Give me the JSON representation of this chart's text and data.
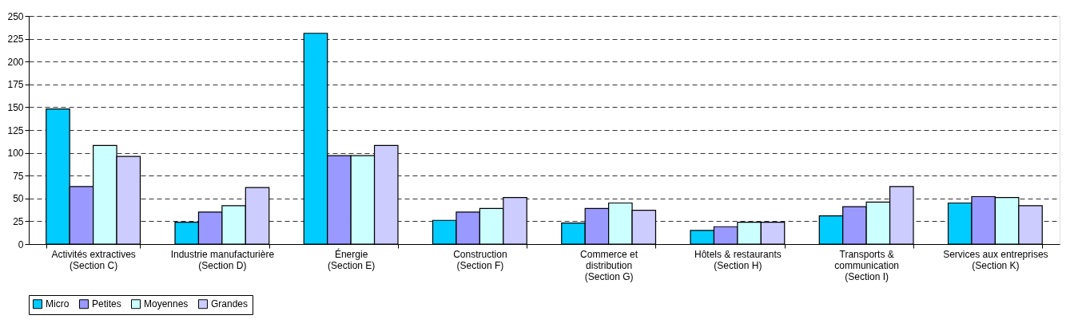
{
  "chart_data": {
    "type": "bar",
    "categories": [
      "Activités extractives\n(Section C)",
      "Industrie manufacturière\n(Section D)",
      "Énergie\n(Section E)",
      "Construction\n(Section F)",
      "Commerce et\ndistribution\n(Section G)",
      "Hôtels & restaurants\n(Section H)",
      "Transports &\ncommunication\n(Section I)",
      "Services aux entreprises\n(Section K)"
    ],
    "series": [
      {
        "name": "Micro",
        "color": "#00ccff",
        "values": [
          148,
          24,
          231,
          26,
          23,
          15,
          31,
          45
        ]
      },
      {
        "name": "Petites",
        "color": "#9999ff",
        "values": [
          63,
          35,
          97,
          35,
          39,
          19,
          41,
          52
        ]
      },
      {
        "name": "Moyennes",
        "color": "#ccffff",
        "values": [
          108,
          42,
          97,
          39,
          45,
          24,
          46,
          51
        ]
      },
      {
        "name": "Grandes",
        "color": "#ccccff",
        "values": [
          96,
          62,
          108,
          51,
          37,
          24,
          63,
          42
        ]
      }
    ],
    "ylim": [
      0,
      250
    ],
    "yticks": [
      0,
      25,
      50,
      75,
      100,
      125,
      150,
      175,
      200,
      225,
      250
    ],
    "grid": "y",
    "legend": "bottom"
  }
}
